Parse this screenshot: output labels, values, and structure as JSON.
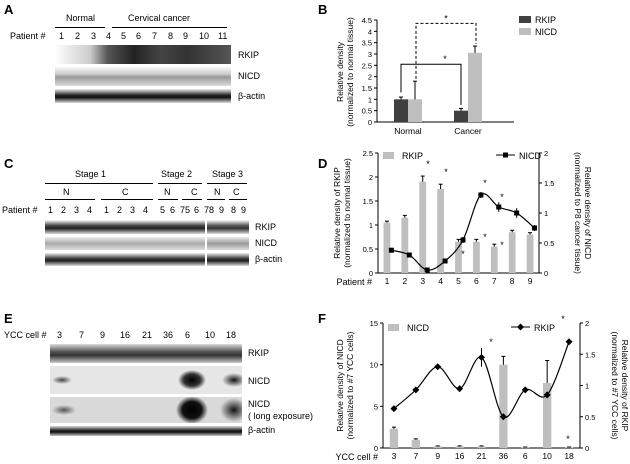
{
  "panelA": {
    "letter": "A",
    "group_normal": "Normal",
    "group_cancer": "Cervical cancer",
    "patient_label": "Patient #",
    "lanes": [
      "1",
      "2",
      "3",
      "4",
      "5",
      "6",
      "7",
      "8",
      "9",
      "10",
      "11"
    ],
    "bands": [
      "RKIP",
      "NICD",
      "β-actin"
    ]
  },
  "panelB": {
    "letter": "B",
    "sig_marks": [
      "*",
      "*"
    ],
    "chart_data": {
      "type": "bar",
      "categories": [
        "Normal",
        "Cancer"
      ],
      "series": [
        {
          "name": "RKIP",
          "values": [
            1.0,
            0.5
          ],
          "errors": [
            0.1,
            0.1
          ],
          "color": "#404040"
        },
        {
          "name": "NICD",
          "values": [
            1.0,
            3.05
          ],
          "errors": [
            0.8,
            0.3
          ],
          "color": "#bfbfbf"
        }
      ],
      "ylabel": "Relative density\n(normalized to normal tissue)",
      "ylim": [
        0,
        4.5
      ],
      "yticks": [
        "0",
        "0.5",
        "1",
        "1.5",
        "2",
        "2.5",
        "3",
        "3.5",
        "4",
        "4.5"
      ]
    }
  },
  "panelC": {
    "letter": "C",
    "stages": [
      "Stage 1",
      "Stage 2",
      "Stage 3"
    ],
    "nc": [
      "N",
      "C",
      "N",
      "C",
      "N",
      "C"
    ],
    "patient_label": "Patient #",
    "lanes": [
      "1",
      "2",
      "3",
      "4",
      "1",
      "2",
      "3",
      "4",
      "5",
      "6",
      "7",
      "5",
      "6",
      "7",
      "8",
      "9",
      "8",
      "9"
    ],
    "bands": [
      "RKIP",
      "NICD",
      "β-actin"
    ]
  },
  "panelD": {
    "letter": "D",
    "legend_rkip": "RKIP",
    "legend_nicd": "NICD",
    "x_label": "Patient #",
    "stars": [
      "*",
      "*",
      "*",
      "*",
      "*",
      "*",
      "*"
    ],
    "chart_data": {
      "type": "bar+line",
      "categories": [
        "1",
        "2",
        "3",
        "4",
        "5",
        "6",
        "7",
        "8",
        "9"
      ],
      "series": [
        {
          "name": "RKIP",
          "values": [
            1.05,
            1.15,
            1.9,
            1.75,
            0.65,
            0.65,
            0.55,
            0.85,
            0.8
          ],
          "errors": [
            0.03,
            0.05,
            0.12,
            0.1,
            0.05,
            0.05,
            0.05,
            0.04,
            0.04
          ],
          "axis": "left",
          "kind": "bar",
          "color": "#bfbfbf"
        },
        {
          "name": "NICD",
          "values": [
            0.38,
            0.3,
            0.05,
            0.2,
            0.55,
            1.3,
            1.1,
            1.0,
            0.75
          ],
          "errors": [
            0.02,
            0.02,
            0.01,
            0.02,
            0.05,
            0.05,
            0.08,
            0.08,
            0.05
          ],
          "axis": "right",
          "kind": "line",
          "color": "#000000"
        }
      ],
      "ylabel_left": "Relative density of RKIP\n(normalized to normal tissue)",
      "ylabel_right": "Relative density of NICD\n(normalized to P8 cancer tissue)",
      "ylim_left": [
        0,
        2.5
      ],
      "ylim_right": [
        0,
        2
      ],
      "yticks_left": [
        "0",
        "0.5",
        "1",
        "1.5",
        "2",
        "2.5"
      ],
      "yticks_right": [
        "0",
        "0.5",
        "1",
        "1.5",
        "2"
      ]
    }
  },
  "panelE": {
    "letter": "E",
    "label": "YCC cell #",
    "lanes": [
      "3",
      "7",
      "9",
      "16",
      "21",
      "36",
      "6",
      "10",
      "18"
    ],
    "bands": [
      "RKIP",
      "NICD",
      "NICD",
      "( long exposure)",
      "β-actin"
    ]
  },
  "panelF": {
    "letter": "F",
    "legend_nicd": "NICD",
    "legend_rkip": "RKIP",
    "x_label": "YCC cell #",
    "stars": [
      "*",
      "*",
      "*"
    ],
    "chart_data": {
      "type": "bar+line",
      "categories": [
        "3",
        "7",
        "9",
        "16",
        "21",
        "36",
        "6",
        "10",
        "18"
      ],
      "series": [
        {
          "name": "NICD",
          "values": [
            2.3,
            1.0,
            0.2,
            0.2,
            0.2,
            10.0,
            0.1,
            7.8,
            0.1
          ],
          "errors": [
            0.2,
            0.1,
            0.05,
            0.05,
            0.05,
            1.0,
            0.02,
            2.7,
            0.02
          ],
          "axis": "left",
          "kind": "bar",
          "color": "#bfbfbf"
        },
        {
          "name": "RKIP",
          "values": [
            0.63,
            0.93,
            1.3,
            0.95,
            1.45,
            0.5,
            0.93,
            0.85,
            1.7
          ],
          "errors": [
            0.03,
            0.03,
            0.03,
            0.05,
            0.15,
            0.05,
            0.03,
            0.05,
            0.05
          ],
          "axis": "right",
          "kind": "line",
          "color": "#000000"
        }
      ],
      "ylabel_left": "Relative density of NICD\n(normalized to #7 YCC cells)",
      "ylabel_right": "Relative density of RKIP\n(normalized to #7 YCC cells)",
      "ylim_left": [
        0,
        15
      ],
      "ylim_right": [
        0,
        2
      ],
      "yticks_left": [
        "0",
        "5",
        "10",
        "15"
      ],
      "yticks_right": [
        "0",
        "0.5",
        "1",
        "1.5",
        "2"
      ]
    }
  }
}
